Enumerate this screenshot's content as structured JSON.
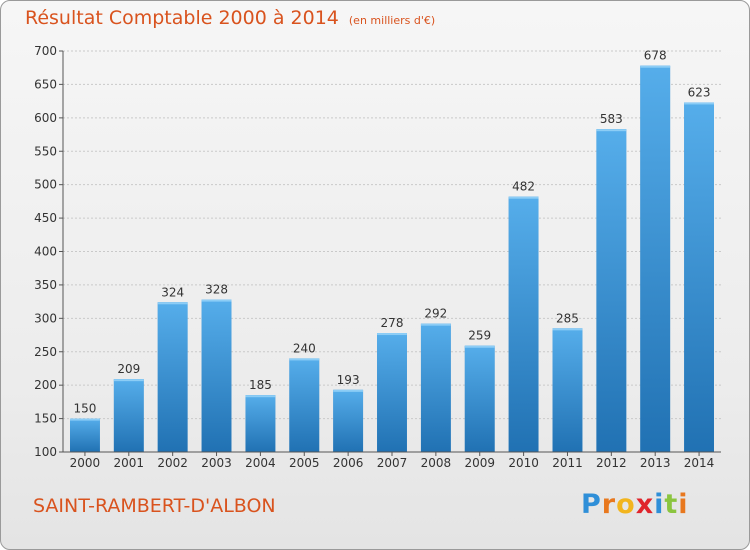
{
  "header": {
    "title": "Résultat Comptable 2000 à 2014",
    "subtitle": "(en milliers d'€)"
  },
  "footer": {
    "commune": "SAINT-RAMBERT-D'ALBON",
    "logo": {
      "letters": [
        "P",
        "r",
        "o",
        "x",
        "i",
        "t",
        "i"
      ],
      "colors": [
        "#2f8fd8",
        "#e8781e",
        "#f2b51e",
        "#e0252c",
        "#2f8fd8",
        "#8bc53f",
        "#e8781e"
      ]
    }
  },
  "chart_data": {
    "type": "bar",
    "categories": [
      "2000",
      "2001",
      "2002",
      "2003",
      "2004",
      "2005",
      "2006",
      "2007",
      "2008",
      "2009",
      "2010",
      "2011",
      "2012",
      "2013",
      "2014"
    ],
    "values": [
      150,
      209,
      324,
      328,
      185,
      240,
      193,
      278,
      292,
      259,
      482,
      285,
      583,
      678,
      623
    ],
    "title": "Résultat Comptable 2000 à 2014",
    "subtitle": "(en milliers d'€)",
    "ylim": [
      100,
      700
    ],
    "yticks": [
      100,
      150,
      200,
      250,
      300,
      350,
      400,
      450,
      500,
      550,
      600,
      650,
      700
    ],
    "grid": true,
    "bar_color": "#3d97dc",
    "data_labels": true
  }
}
